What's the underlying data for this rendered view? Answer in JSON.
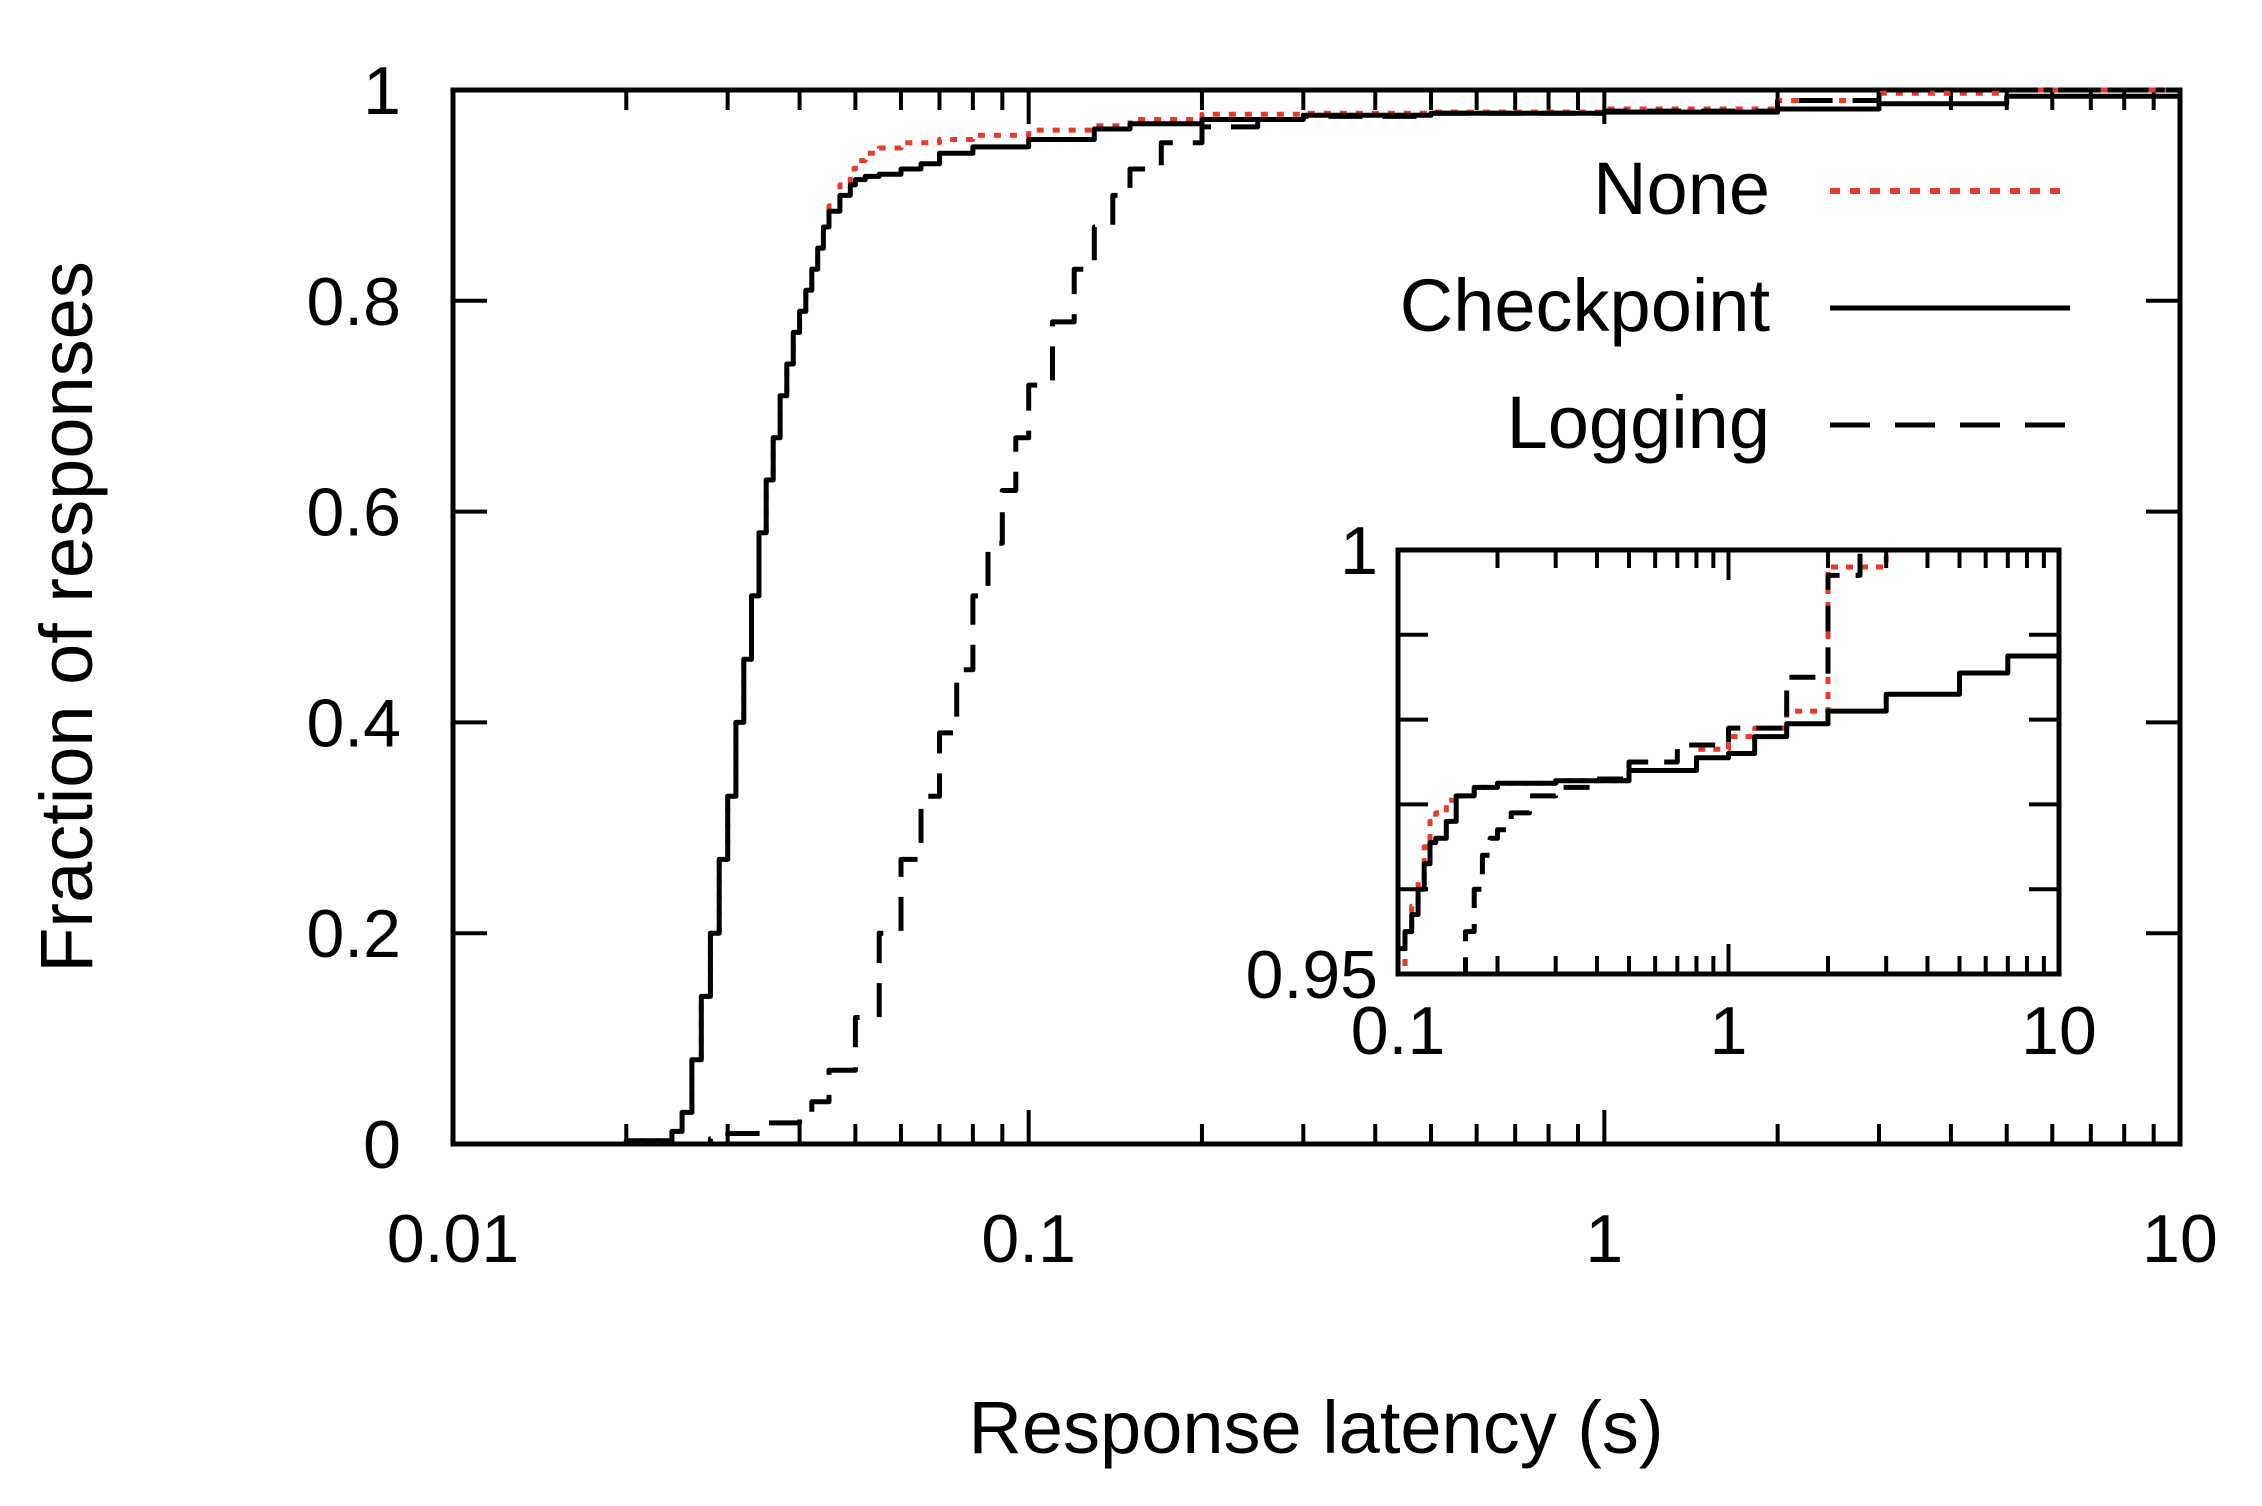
{
  "chart_data": [
    {
      "type": "line",
      "x_scale": "log",
      "xlabel": "Response latency (s)",
      "ylabel": "Fraction of responses",
      "xlim": [
        0.01,
        10
      ],
      "ylim": [
        0,
        1
      ],
      "xticks": [
        "0.01",
        "0.1",
        "1",
        "10"
      ],
      "yticks": [
        "0",
        "0.2",
        "0.4",
        "0.6",
        "0.8",
        "1"
      ],
      "grid": false,
      "legend_position": "top-right",
      "series": [
        {
          "name": "None",
          "color": "#e8392b",
          "style": "dotted",
          "x": [
            0.012,
            0.02,
            0.024,
            0.025,
            0.026,
            0.027,
            0.028,
            0.029,
            0.03,
            0.031,
            0.032,
            0.033,
            0.034,
            0.035,
            0.036,
            0.037,
            0.038,
            0.039,
            0.04,
            0.041,
            0.042,
            0.043,
            0.044,
            0.045,
            0.047,
            0.049,
            0.05,
            0.052,
            0.055,
            0.06,
            0.07,
            0.08,
            0.1,
            0.13,
            0.15,
            0.2,
            0.3,
            0.5,
            1,
            2,
            3,
            5,
            10
          ],
          "y": [
            0,
            0.003,
            0.012,
            0.03,
            0.08,
            0.14,
            0.2,
            0.27,
            0.33,
            0.4,
            0.46,
            0.52,
            0.58,
            0.63,
            0.67,
            0.71,
            0.74,
            0.77,
            0.79,
            0.81,
            0.83,
            0.85,
            0.87,
            0.89,
            0.91,
            0.925,
            0.933,
            0.94,
            0.945,
            0.95,
            0.953,
            0.957,
            0.962,
            0.966,
            0.972,
            0.977,
            0.978,
            0.979,
            0.982,
            0.99,
            0.997,
            1.0,
            1.0
          ]
        },
        {
          "name": "Checkpoint",
          "color": "#000000",
          "style": "solid",
          "x": [
            0.012,
            0.02,
            0.024,
            0.025,
            0.026,
            0.027,
            0.028,
            0.029,
            0.03,
            0.031,
            0.032,
            0.033,
            0.034,
            0.035,
            0.036,
            0.037,
            0.038,
            0.039,
            0.04,
            0.041,
            0.042,
            0.043,
            0.044,
            0.045,
            0.047,
            0.049,
            0.05,
            0.052,
            0.055,
            0.06,
            0.065,
            0.07,
            0.08,
            0.1,
            0.13,
            0.15,
            0.2,
            0.3,
            0.5,
            1,
            2,
            3,
            5,
            10
          ],
          "y": [
            0,
            0.003,
            0.012,
            0.03,
            0.08,
            0.14,
            0.2,
            0.27,
            0.33,
            0.4,
            0.46,
            0.52,
            0.58,
            0.63,
            0.67,
            0.71,
            0.74,
            0.77,
            0.79,
            0.81,
            0.83,
            0.85,
            0.87,
            0.885,
            0.9,
            0.91,
            0.915,
            0.918,
            0.92,
            0.925,
            0.93,
            0.94,
            0.946,
            0.953,
            0.963,
            0.968,
            0.972,
            0.976,
            0.978,
            0.979,
            0.982,
            0.987,
            0.994,
            1.0
          ]
        },
        {
          "name": "Logging",
          "color": "#000000",
          "style": "dashed",
          "x": [
            0.025,
            0.028,
            0.03,
            0.035,
            0.04,
            0.042,
            0.045,
            0.05,
            0.055,
            0.06,
            0.065,
            0.07,
            0.075,
            0.08,
            0.085,
            0.09,
            0.095,
            0.1,
            0.11,
            0.12,
            0.13,
            0.14,
            0.15,
            0.17,
            0.2,
            0.25,
            0.3,
            0.5,
            1,
            2,
            3,
            10
          ],
          "y": [
            0,
            0.005,
            0.01,
            0.02,
            0.03,
            0.04,
            0.07,
            0.12,
            0.2,
            0.27,
            0.33,
            0.39,
            0.45,
            0.52,
            0.57,
            0.62,
            0.67,
            0.72,
            0.78,
            0.83,
            0.87,
            0.9,
            0.925,
            0.95,
            0.965,
            0.972,
            0.975,
            0.978,
            0.98,
            0.99,
            1.0,
            1.0
          ]
        }
      ]
    },
    {
      "type": "line",
      "inset": true,
      "x_scale": "log",
      "xlabel": "",
      "ylabel": "",
      "xlim": [
        0.1,
        10
      ],
      "ylim": [
        0.95,
        1
      ],
      "xticks": [
        "0.1",
        "1",
        "10"
      ],
      "yticks": [
        "0.95",
        "1"
      ],
      "grid": false,
      "series": [
        {
          "name": "None",
          "color": "#e8392b",
          "style": "dotted",
          "x": [
            0.1,
            0.105,
            0.11,
            0.115,
            0.12,
            0.125,
            0.13,
            0.14,
            0.15,
            0.17,
            0.2,
            0.3,
            0.5,
            0.8,
            1.0,
            1.2,
            1.5,
            2.0,
            3.0,
            5.0,
            10.0
          ],
          "y": [
            0.95,
            0.955,
            0.958,
            0.961,
            0.965,
            0.968,
            0.969,
            0.9705,
            0.971,
            0.972,
            0.9725,
            0.9728,
            0.974,
            0.9765,
            0.978,
            0.979,
            0.981,
            0.998,
            1.0,
            1.0,
            1.0
          ]
        },
        {
          "name": "Checkpoint",
          "color": "#000000",
          "style": "solid",
          "x": [
            0.1,
            0.105,
            0.11,
            0.115,
            0.12,
            0.125,
            0.13,
            0.14,
            0.15,
            0.17,
            0.2,
            0.3,
            0.5,
            0.8,
            1.0,
            1.2,
            1.5,
            2.0,
            3.0,
            5.0,
            7.0,
            10.0
          ],
          "y": [
            0.953,
            0.955,
            0.957,
            0.96,
            0.963,
            0.9655,
            0.966,
            0.968,
            0.971,
            0.972,
            0.9725,
            0.9728,
            0.974,
            0.9755,
            0.976,
            0.978,
            0.9795,
            0.981,
            0.983,
            0.9855,
            0.9875,
            1.0
          ]
        },
        {
          "name": "Logging",
          "color": "#000000",
          "style": "dashed",
          "x": [
            0.15,
            0.16,
            0.17,
            0.18,
            0.19,
            0.2,
            0.22,
            0.25,
            0.3,
            0.4,
            0.5,
            0.7,
            1.0,
            1.5,
            2.0,
            2.5,
            3.0
          ],
          "y": [
            0.95,
            0.955,
            0.96,
            0.964,
            0.966,
            0.967,
            0.969,
            0.971,
            0.972,
            0.973,
            0.975,
            0.977,
            0.979,
            0.985,
            0.997,
            1.0,
            1.0
          ]
        }
      ]
    }
  ]
}
